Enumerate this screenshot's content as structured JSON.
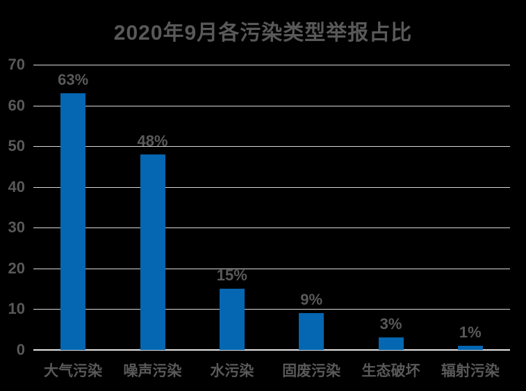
{
  "colors": {
    "background": "#000000",
    "bar": "#0566B1",
    "text": "#595959",
    "gridline": "#D9D9D9",
    "axis_line": "#E6E6E6"
  },
  "chart_data": {
    "type": "bar",
    "title": "2020年9月各污染类型举报占比",
    "categories": [
      "大气污染",
      "噪声污染",
      "水污染",
      "固废污染",
      "生态破坏",
      "辐射污染"
    ],
    "values": [
      63,
      48,
      15,
      9,
      3,
      1
    ],
    "value_labels": [
      "63%",
      "48%",
      "15%",
      "9%",
      "3%",
      "1%"
    ],
    "unit": "%",
    "xlabel": "",
    "ylabel": "",
    "ylim": [
      0,
      70
    ],
    "yticks": [
      0,
      10,
      20,
      30,
      40,
      50,
      60,
      70
    ],
    "grid": "horizontal",
    "legend": "none"
  }
}
